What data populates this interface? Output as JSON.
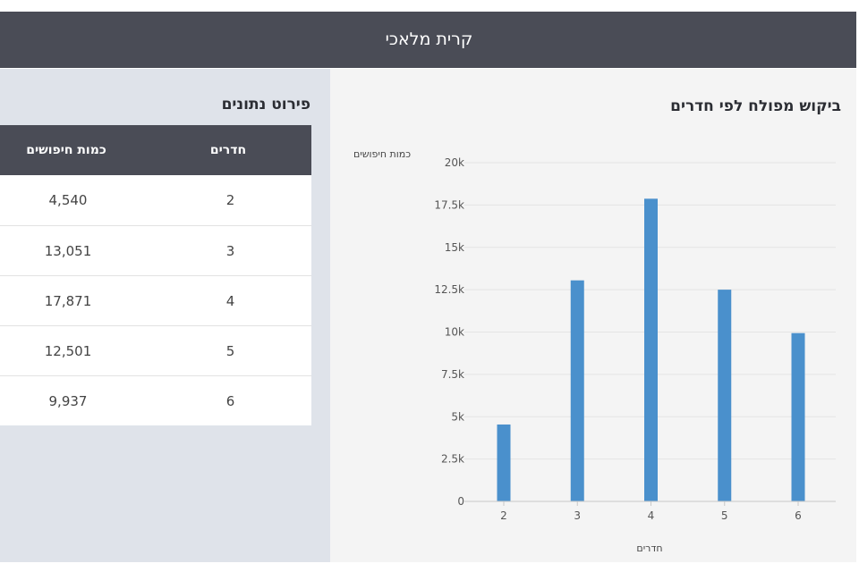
{
  "header": {
    "title": "קרית מלאכי"
  },
  "table": {
    "title": "פירוט נתונים",
    "headers": {
      "rooms": "חדרים",
      "count": "כמות חיפושים"
    },
    "rows": [
      {
        "rooms": "2",
        "count": "4,540"
      },
      {
        "rooms": "3",
        "count": "13,051"
      },
      {
        "rooms": "4",
        "count": "17,871"
      },
      {
        "rooms": "5",
        "count": "12,501"
      },
      {
        "rooms": "6",
        "count": "9,937"
      }
    ]
  },
  "colors": {
    "header_bg": "#4a4c56",
    "bar": "#4a90cc",
    "left_panel_bg": "#dfe3ea",
    "right_panel_bg": "#f4f4f4"
  },
  "chart_data": {
    "type": "bar",
    "title": "ביקוש מפולח לפי חדרים",
    "xlabel": "חדרים",
    "ylabel": "כמות חיפושים",
    "categories": [
      "2",
      "3",
      "4",
      "5",
      "6"
    ],
    "values": [
      4540,
      13051,
      17871,
      12501,
      9937
    ],
    "ylim": [
      0,
      20000
    ],
    "yticks": [
      {
        "value": 0,
        "label": "0"
      },
      {
        "value": 2500,
        "label": "2.5k"
      },
      {
        "value": 5000,
        "label": "5k"
      },
      {
        "value": 7500,
        "label": "7.5k"
      },
      {
        "value": 10000,
        "label": "10k"
      },
      {
        "value": 12500,
        "label": "12.5k"
      },
      {
        "value": 15000,
        "label": "15k"
      },
      {
        "value": 17500,
        "label": "17.5k"
      },
      {
        "value": 20000,
        "label": "20k"
      }
    ],
    "grid": true,
    "legend": false
  }
}
